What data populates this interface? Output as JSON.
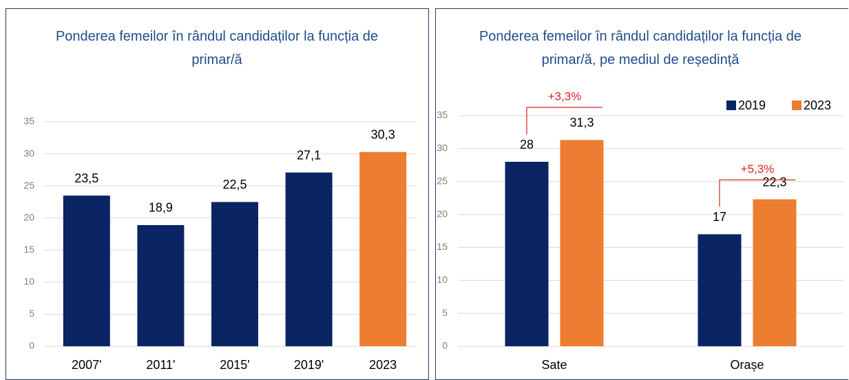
{
  "chart_data": [
    {
      "type": "bar",
      "title": "Ponderea femeilor în rândul candidaților la funcția de primar/ă",
      "categories": [
        "2007'",
        "2011'",
        "2015'",
        "2019'",
        "2023"
      ],
      "values": [
        23.5,
        18.9,
        22.5,
        27.1,
        30.3
      ],
      "value_labels": [
        "23,5",
        "18,9",
        "22,5",
        "27,1",
        "30,3"
      ],
      "colors": [
        "#0b2463",
        "#0b2463",
        "#0b2463",
        "#0b2463",
        "#ed7d31"
      ],
      "ylim": [
        0,
        35
      ],
      "yticks": [
        0,
        5,
        10,
        15,
        20,
        25,
        30,
        35
      ],
      "grid": true
    },
    {
      "type": "grouped_bar",
      "title": "Ponderea femeilor în rândul candidaților la funcția de primar/ă, pe mediul de reședință",
      "categories": [
        "Sate",
        "Orașe"
      ],
      "series": [
        {
          "name": "2019",
          "color": "#0b2463",
          "values": [
            28,
            17
          ]
        },
        {
          "name": "2023",
          "color": "#ed7d31",
          "values": [
            31.3,
            22.3
          ],
          "value_labels": [
            "31,3",
            "22,3"
          ]
        }
      ],
      "annotations": [
        "+3,3%",
        "+5,3%"
      ],
      "ylim": [
        0,
        35
      ],
      "yticks": [
        0,
        5,
        10,
        15,
        20,
        25,
        30,
        35
      ],
      "grid": true,
      "legend": "top-right"
    }
  ]
}
